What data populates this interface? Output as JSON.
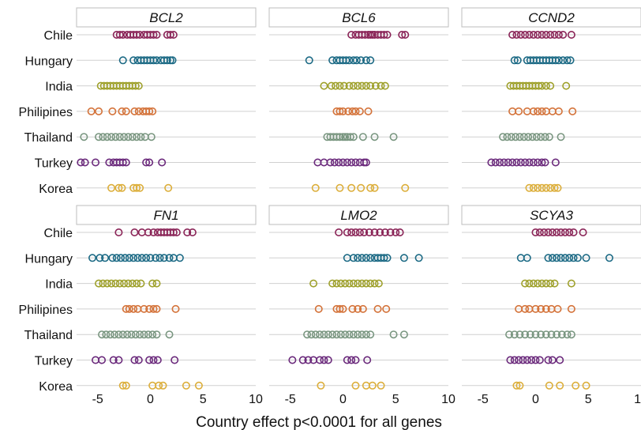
{
  "chart_data": {
    "type": "scatter",
    "xlabel": "Country effect p<0.0001 for all genes",
    "xlim": [
      -7,
      10
    ],
    "xticks": [
      -5,
      0,
      5,
      10
    ],
    "xtick_labels": [
      "-5",
      "0",
      "5",
      "10"
    ],
    "grid": "horizontal",
    "categories": [
      "Chile",
      "Hungary",
      "India",
      "Philipines",
      "Thailand",
      "Turkey",
      "Korea"
    ],
    "colors": {
      "Chile": "#8a2457",
      "Hungary": "#1c6a85",
      "India": "#9ea02a",
      "Philipines": "#d4733a",
      "Thailand": "#78957f",
      "Turkey": "#6b2a7c",
      "Korea": "#dcae3a"
    },
    "panels": [
      {
        "title": "BCL2",
        "series": {
          "Chile": [
            -3.2,
            -2.9,
            -2.6,
            -2.2,
            -1.9,
            -1.6,
            -1.3,
            -1.0,
            -0.6,
            -0.3,
            0.0,
            0.3,
            0.6,
            1.6,
            1.9,
            2.2
          ],
          "Hungary": [
            -2.6,
            -1.6,
            -1.2,
            -0.9,
            -0.6,
            -0.3,
            0.0,
            0.3,
            0.6,
            1.0,
            1.3,
            1.6,
            1.9,
            2.1
          ],
          "India": [
            -4.7,
            -4.4,
            -4.1,
            -3.8,
            -3.5,
            -3.2,
            -2.9,
            -2.6,
            -2.3,
            -2.0,
            -1.7,
            -1.4,
            -1.1
          ],
          "Philipines": [
            -5.6,
            -4.9,
            -3.6,
            -2.7,
            -2.3,
            -1.5,
            -1.1,
            -0.7,
            -0.4,
            -0.1,
            0.2
          ],
          "Thailand": [
            -6.3,
            -4.9,
            -4.5,
            -4.1,
            -3.7,
            -3.3,
            -2.9,
            -2.5,
            -2.1,
            -1.7,
            -1.3,
            -0.9,
            -0.5,
            0.1
          ],
          "Turkey": [
            -6.6,
            -6.2,
            -5.2,
            -3.9,
            -3.5,
            -3.2,
            -2.9,
            -2.6,
            -2.3,
            -0.4,
            -0.1,
            1.1
          ],
          "Korea": [
            -3.7,
            -3.0,
            -2.7,
            -1.6,
            -1.3,
            -1.0,
            1.7
          ]
        }
      },
      {
        "title": "BCL6",
        "series": {
          "Chile": [
            0.8,
            1.2,
            1.5,
            1.8,
            2.1,
            2.4,
            2.6,
            2.8,
            3.0,
            3.3,
            3.6,
            3.9,
            4.2,
            5.6,
            5.9
          ],
          "Hungary": [
            -3.2,
            -1.0,
            -0.6,
            -0.3,
            0.0,
            0.3,
            0.6,
            1.0,
            1.3,
            1.7,
            2.2,
            2.6
          ],
          "India": [
            -1.8,
            -1.1,
            -0.7,
            -0.3,
            0.1,
            0.6,
            1.0,
            1.4,
            1.8,
            2.2,
            2.6,
            3.1,
            3.6,
            4.0
          ],
          "Philipines": [
            -0.6,
            -0.3,
            0.0,
            0.5,
            0.9,
            1.2,
            1.6,
            2.4
          ],
          "Thailand": [
            -1.5,
            -1.2,
            -0.9,
            -0.6,
            -0.3,
            0.0,
            0.2,
            0.4,
            0.7,
            1.0,
            1.9,
            3.0,
            4.8
          ],
          "Turkey": [
            -2.4,
            -1.8,
            -1.2,
            -0.8,
            -0.4,
            0.0,
            0.4,
            0.8,
            1.2,
            1.6,
            2.0,
            2.2
          ],
          "Korea": [
            -2.6,
            -0.3,
            0.8,
            1.7,
            2.6,
            3.0,
            5.9
          ]
        }
      },
      {
        "title": "CCND2",
        "series": {
          "Chile": [
            -2.2,
            -1.8,
            -1.4,
            -1.0,
            -0.6,
            -0.2,
            0.2,
            0.6,
            1.0,
            1.4,
            1.8,
            2.2,
            2.6,
            3.4
          ],
          "Hungary": [
            -2.0,
            -1.7,
            -0.8,
            -0.5,
            -0.2,
            0.1,
            0.4,
            0.7,
            1.0,
            1.3,
            1.6,
            1.9,
            2.2,
            2.6,
            3.0,
            3.3
          ],
          "India": [
            -2.4,
            -2.1,
            -1.8,
            -1.5,
            -1.2,
            -0.9,
            -0.6,
            -0.3,
            0.0,
            0.3,
            0.6,
            1.0,
            1.4,
            2.9
          ],
          "Philipines": [
            -2.2,
            -1.6,
            -0.8,
            -0.2,
            0.2,
            0.6,
            1.0,
            1.6,
            2.2,
            3.5
          ],
          "Thailand": [
            -3.1,
            -2.7,
            -2.3,
            -1.9,
            -1.5,
            -1.1,
            -0.7,
            -0.3,
            0.1,
            0.5,
            0.9,
            1.3,
            2.4
          ],
          "Turkey": [
            -4.2,
            -3.8,
            -3.4,
            -3.0,
            -2.6,
            -2.2,
            -1.8,
            -1.4,
            -1.0,
            -0.6,
            -0.2,
            0.2,
            0.6,
            0.9,
            1.9
          ],
          "Korea": [
            -0.6,
            -0.2,
            0.2,
            0.6,
            1.0,
            1.4,
            1.8,
            2.1
          ]
        }
      },
      {
        "title": "FN1",
        "series": {
          "Chile": [
            -3.0,
            -1.5,
            -0.8,
            -0.2,
            0.3,
            0.7,
            1.0,
            1.3,
            1.6,
            1.9,
            2.2,
            2.5,
            3.5,
            4.0
          ],
          "Hungary": [
            -5.5,
            -4.8,
            -4.3,
            -3.6,
            -3.2,
            -2.8,
            -2.4,
            -2.0,
            -1.6,
            -1.2,
            -0.8,
            -0.4,
            0.0,
            0.5,
            0.9,
            1.3,
            1.8,
            2.2,
            2.8
          ],
          "India": [
            -4.9,
            -4.5,
            -4.1,
            -3.7,
            -3.3,
            -2.9,
            -2.5,
            -2.1,
            -1.7,
            -1.3,
            -0.9,
            0.2,
            0.6
          ],
          "Philipines": [
            -2.3,
            -2.0,
            -1.6,
            -1.2,
            -0.6,
            -0.1,
            0.3,
            0.6,
            2.4
          ],
          "Thailand": [
            -4.6,
            -4.2,
            -3.8,
            -3.4,
            -3.0,
            -2.6,
            -2.2,
            -1.8,
            -1.4,
            -1.0,
            -0.6,
            -0.2,
            0.2,
            0.6,
            1.8
          ],
          "Turkey": [
            -5.2,
            -4.6,
            -3.5,
            -3.0,
            -1.5,
            -1.1,
            -0.1,
            0.3,
            0.7,
            2.3
          ],
          "Korea": [
            -2.6,
            -2.3,
            0.2,
            0.8,
            1.2,
            3.4,
            4.6
          ]
        }
      },
      {
        "title": "LMO2",
        "series": {
          "Chile": [
            -0.4,
            0.4,
            0.8,
            1.2,
            1.6,
            2.0,
            2.5,
            3.0,
            3.5,
            4.0,
            4.5,
            5.0,
            5.4
          ],
          "Hungary": [
            0.4,
            1.0,
            1.4,
            1.8,
            2.2,
            2.6,
            3.0,
            3.3,
            3.6,
            3.9,
            4.2,
            5.8,
            7.2
          ],
          "India": [
            -2.8,
            -1.0,
            -0.6,
            -0.2,
            0.2,
            0.6,
            1.0,
            1.4,
            1.8,
            2.2,
            2.6,
            3.0,
            3.4
          ],
          "Philipines": [
            -2.3,
            -0.6,
            -0.3,
            0.0,
            0.9,
            1.4,
            1.9,
            3.3,
            4.1
          ],
          "Thailand": [
            -3.4,
            -3.0,
            -2.6,
            -2.2,
            -1.8,
            -1.4,
            -1.0,
            -0.6,
            -0.2,
            0.2,
            0.6,
            1.0,
            1.4,
            1.8,
            2.2,
            2.6,
            4.8,
            5.8
          ],
          "Turkey": [
            -4.8,
            -3.8,
            -3.3,
            -2.8,
            -2.2,
            -1.8,
            -1.4,
            0.4,
            0.8,
            1.2,
            2.3
          ],
          "Korea": [
            -2.1,
            1.2,
            2.2,
            2.8,
            3.6
          ]
        }
      },
      {
        "title": "SCYA3",
        "series": {
          "Chile": [
            0.0,
            0.4,
            0.8,
            1.2,
            1.6,
            2.0,
            2.4,
            2.8,
            3.2,
            3.6,
            4.5
          ],
          "Hungary": [
            -1.4,
            -0.8,
            1.2,
            1.6,
            2.0,
            2.4,
            2.8,
            3.2,
            3.6,
            4.0,
            4.8,
            7.0
          ],
          "India": [
            -1.0,
            -0.6,
            -0.2,
            0.2,
            0.6,
            1.0,
            1.4,
            1.8,
            3.4
          ],
          "Philipines": [
            -1.6,
            -1.0,
            -0.6,
            0.0,
            0.5,
            1.0,
            1.5,
            2.1,
            3.4
          ],
          "Thailand": [
            -2.5,
            -2.0,
            -1.5,
            -1.0,
            -0.5,
            0.0,
            0.5,
            1.0,
            1.5,
            2.0,
            2.5,
            3.0,
            3.4
          ],
          "Turkey": [
            -2.4,
            -2.0,
            -1.6,
            -1.2,
            -0.8,
            -0.4,
            0.0,
            0.4,
            1.2,
            1.6,
            2.3
          ],
          "Korea": [
            -1.8,
            -1.5,
            1.3,
            2.3,
            3.8,
            4.8
          ]
        }
      }
    ]
  }
}
